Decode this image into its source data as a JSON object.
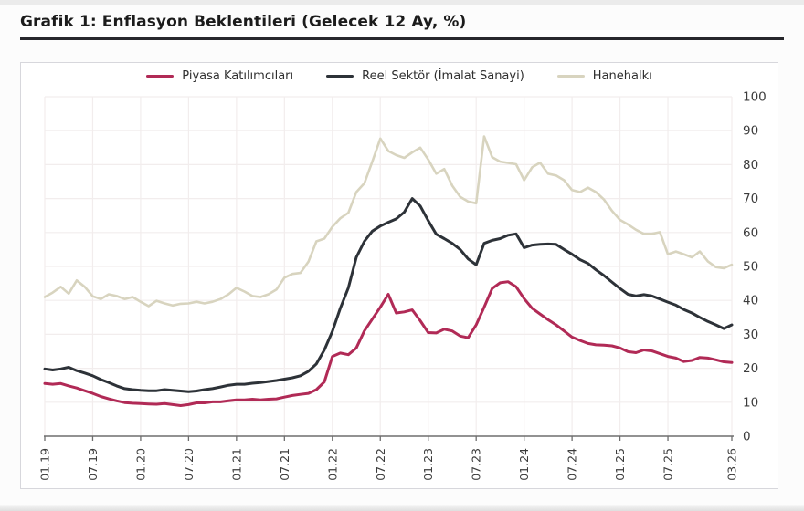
{
  "title": "Grafik 1: Enflasyon Beklentileri (Gelecek 12 Ay, %)",
  "chart_data": {
    "type": "line",
    "months_total": 87,
    "x_range_note": "monthly data from 01.19 to 03.26",
    "x_tick_labels": [
      "01.19",
      "07.19",
      "01.20",
      "07.20",
      "01.21",
      "07.21",
      "01.22",
      "07.22",
      "01.23",
      "07.23",
      "01.24",
      "07.24",
      "01.25",
      "07.25",
      "03.26"
    ],
    "x_tick_positions": [
      0,
      6,
      12,
      18,
      24,
      30,
      36,
      42,
      48,
      54,
      60,
      66,
      72,
      78,
      86
    ],
    "y_ticks": [
      0,
      10,
      20,
      30,
      40,
      50,
      60,
      70,
      80,
      90,
      100
    ],
    "ylim": [
      0,
      100
    ],
    "grid": true,
    "legend_position": "top-center",
    "colors": {
      "grid": "#f2eded",
      "axis": "#6e6e6e",
      "tick_text": "#3c3c3c"
    },
    "series": [
      {
        "name": "Piyasa Katılımcıları",
        "color": "#b12a56",
        "width": 3,
        "values": [
          15.5,
          15.3,
          15.5,
          14.8,
          14.2,
          13.4,
          12.6,
          11.7,
          11.0,
          10.4,
          9.9,
          9.7,
          9.6,
          9.5,
          9.4,
          9.6,
          9.3,
          9.0,
          9.3,
          9.8,
          9.8,
          10.1,
          10.1,
          10.4,
          10.7,
          10.7,
          10.9,
          10.7,
          10.9,
          11.0,
          11.5,
          12.0,
          12.3,
          12.6,
          13.7,
          16.0,
          23.5,
          24.5,
          24.0,
          26.0,
          31.0,
          34.5,
          38.0,
          41.8,
          36.3,
          36.6,
          37.2,
          34.0,
          30.5,
          30.4,
          31.5,
          31.0,
          29.5,
          29.0,
          32.8,
          38.0,
          43.5,
          45.2,
          45.5,
          44.0,
          40.5,
          37.7,
          36.0,
          34.3,
          32.8,
          31.0,
          29.2,
          28.2,
          27.3,
          26.9,
          26.8,
          26.6,
          26.0,
          24.9,
          24.6,
          25.4,
          25.1,
          24.3,
          23.5,
          23.0,
          22.0,
          22.3,
          23.2,
          23.0,
          22.5,
          21.9,
          21.7
        ]
      },
      {
        "name": "Reel Sektör (İmalat Sanayi)",
        "color": "#2d3238",
        "width": 3,
        "values": [
          19.8,
          19.5,
          19.8,
          20.3,
          19.3,
          18.6,
          17.8,
          16.7,
          15.8,
          14.8,
          14.0,
          13.7,
          13.5,
          13.4,
          13.4,
          13.7,
          13.5,
          13.3,
          13.1,
          13.3,
          13.7,
          14.0,
          14.5,
          15.0,
          15.3,
          15.3,
          15.6,
          15.8,
          16.1,
          16.4,
          16.8,
          17.2,
          17.8,
          19.1,
          21.3,
          25.4,
          30.9,
          37.7,
          43.7,
          52.7,
          57.4,
          60.4,
          61.9,
          63.0,
          64.0,
          66.0,
          70.0,
          67.8,
          63.5,
          59.5,
          58.2,
          56.8,
          55.0,
          52.2,
          50.5,
          56.8,
          57.7,
          58.2,
          59.2,
          59.6,
          55.5,
          56.3,
          56.5,
          56.6,
          56.5,
          55.0,
          53.6,
          52.0,
          50.9,
          49.0,
          47.3,
          45.4,
          43.5,
          41.8,
          41.3,
          41.7,
          41.3,
          40.4,
          39.5,
          38.6,
          37.3,
          36.3,
          35.0,
          33.8,
          32.8,
          31.7,
          32.8
        ]
      },
      {
        "name": "Hanehalkı",
        "color": "#d8d4bf",
        "width": 2.6,
        "values": [
          41.0,
          42.3,
          44.0,
          42.0,
          45.9,
          44.0,
          41.2,
          40.4,
          41.8,
          41.3,
          40.4,
          41.0,
          39.6,
          38.3,
          39.9,
          39.1,
          38.5,
          39.0,
          39.1,
          39.6,
          39.1,
          39.6,
          40.4,
          41.8,
          43.7,
          42.6,
          41.3,
          41.0,
          41.8,
          43.2,
          46.7,
          47.8,
          48.1,
          51.4,
          57.4,
          58.2,
          61.7,
          64.2,
          65.8,
          71.9,
          74.5,
          80.9,
          87.7,
          84.0,
          82.8,
          82.0,
          83.6,
          85.0,
          81.5,
          77.3,
          78.7,
          73.8,
          70.5,
          69.1,
          68.6,
          88.3,
          82.2,
          80.9,
          80.5,
          80.1,
          75.4,
          79.2,
          80.6,
          77.3,
          76.8,
          75.4,
          72.5,
          71.9,
          73.2,
          71.9,
          69.7,
          66.4,
          63.7,
          62.4,
          60.8,
          59.6,
          59.6,
          60.1,
          53.6,
          54.4,
          53.6,
          52.7,
          54.4,
          51.5,
          49.8,
          49.5,
          50.5
        ]
      }
    ]
  }
}
